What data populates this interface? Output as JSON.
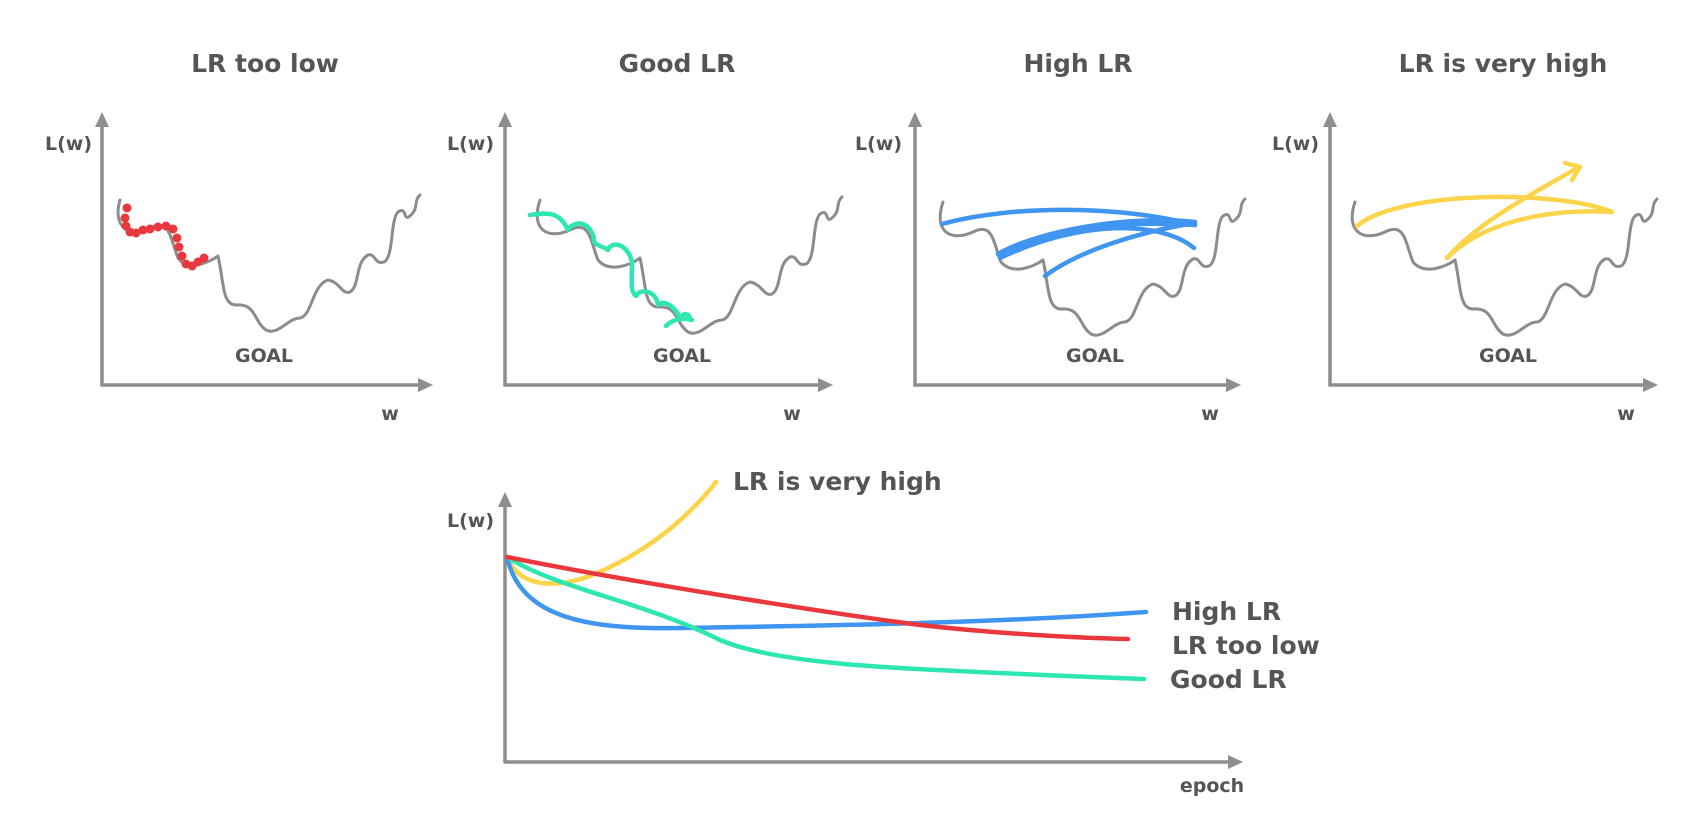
{
  "colors": {
    "axis": "#8e8e8e",
    "landscape": "#8c8c8c",
    "text": "#555555",
    "lr_too_low": "#e8383d",
    "good_lr": "#2ee6b0",
    "high_lr": "#4095f0",
    "very_high_lr": "#fbd449"
  },
  "panels": [
    {
      "title": "LR too low",
      "ylabel": "L(w)",
      "xlabel": "w",
      "goal": "GOAL"
    },
    {
      "title": "Good LR",
      "ylabel": "L(w)",
      "xlabel": "w",
      "goal": "GOAL"
    },
    {
      "title": "High LR",
      "ylabel": "L(w)",
      "xlabel": "w",
      "goal": "GOAL"
    },
    {
      "title": "LR is very high",
      "ylabel": "L(w)",
      "xlabel": "w",
      "goal": "GOAL"
    }
  ],
  "bottom": {
    "ylabel": "L(w)",
    "xlabel": "epoch",
    "curves": [
      {
        "label": "LR is very high"
      },
      {
        "label": "High LR"
      },
      {
        "label": "LR too low"
      },
      {
        "label": "Good LR"
      }
    ]
  }
}
